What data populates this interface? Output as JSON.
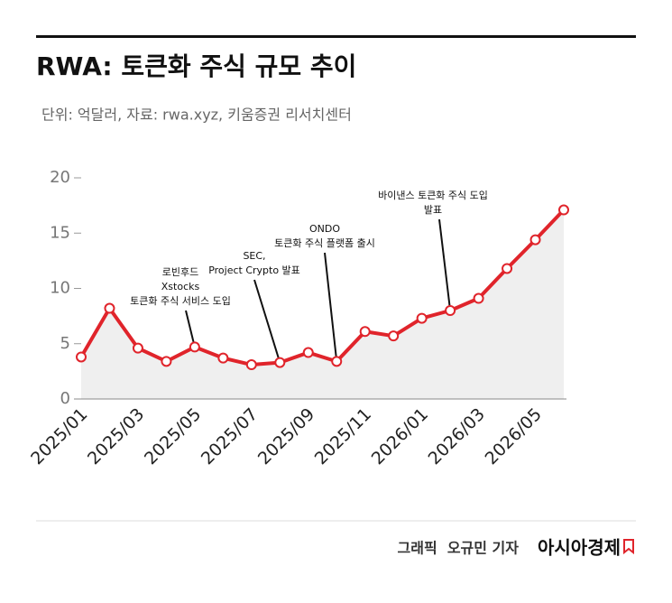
{
  "chart_data": {
    "type": "line",
    "title": "RWA: 토큰화 주식 규모 추이",
    "subtitle": "단위: 억달러, 자료: rwa.xyz, 키움증권 리서치센터",
    "categories": [
      "2025/01",
      null,
      "2025/03",
      null,
      "2025/05",
      null,
      "2025/07",
      null,
      "2025/09",
      null,
      "2025/11",
      null,
      "2026/01",
      null,
      "2026/03",
      null,
      "2026/05",
      null
    ],
    "series": [
      {
        "color": "#e0242b",
        "values": [
          3.8,
          8.2,
          4.6,
          3.4,
          4.7,
          3.7,
          3.1,
          3.3,
          4.2,
          3.4,
          6.1,
          5.7,
          7.3,
          8.0,
          9.1,
          11.8,
          14.4,
          17.1
        ]
      }
    ],
    "ylim": [
      0,
      20
    ],
    "yticks": [
      0,
      5,
      10,
      15,
      20
    ],
    "grid": false,
    "area_color": "#efefef",
    "annotations": [
      {
        "lines": [
          "로빈후드",
          "Xstocks",
          "토큰화 주식 서비스 도입"
        ]
      },
      {
        "lines": [
          "SEC,",
          "Project Crypto 발표"
        ]
      },
      {
        "lines": [
          "ONDO",
          "토큰화 주식 플랫폼 출시"
        ]
      },
      {
        "lines": [
          "바이낸스 토큰화 주식 도입",
          "발표"
        ]
      }
    ]
  },
  "footer": {
    "credit": "그래픽  오규민 기자",
    "brand": "아시아경제"
  }
}
